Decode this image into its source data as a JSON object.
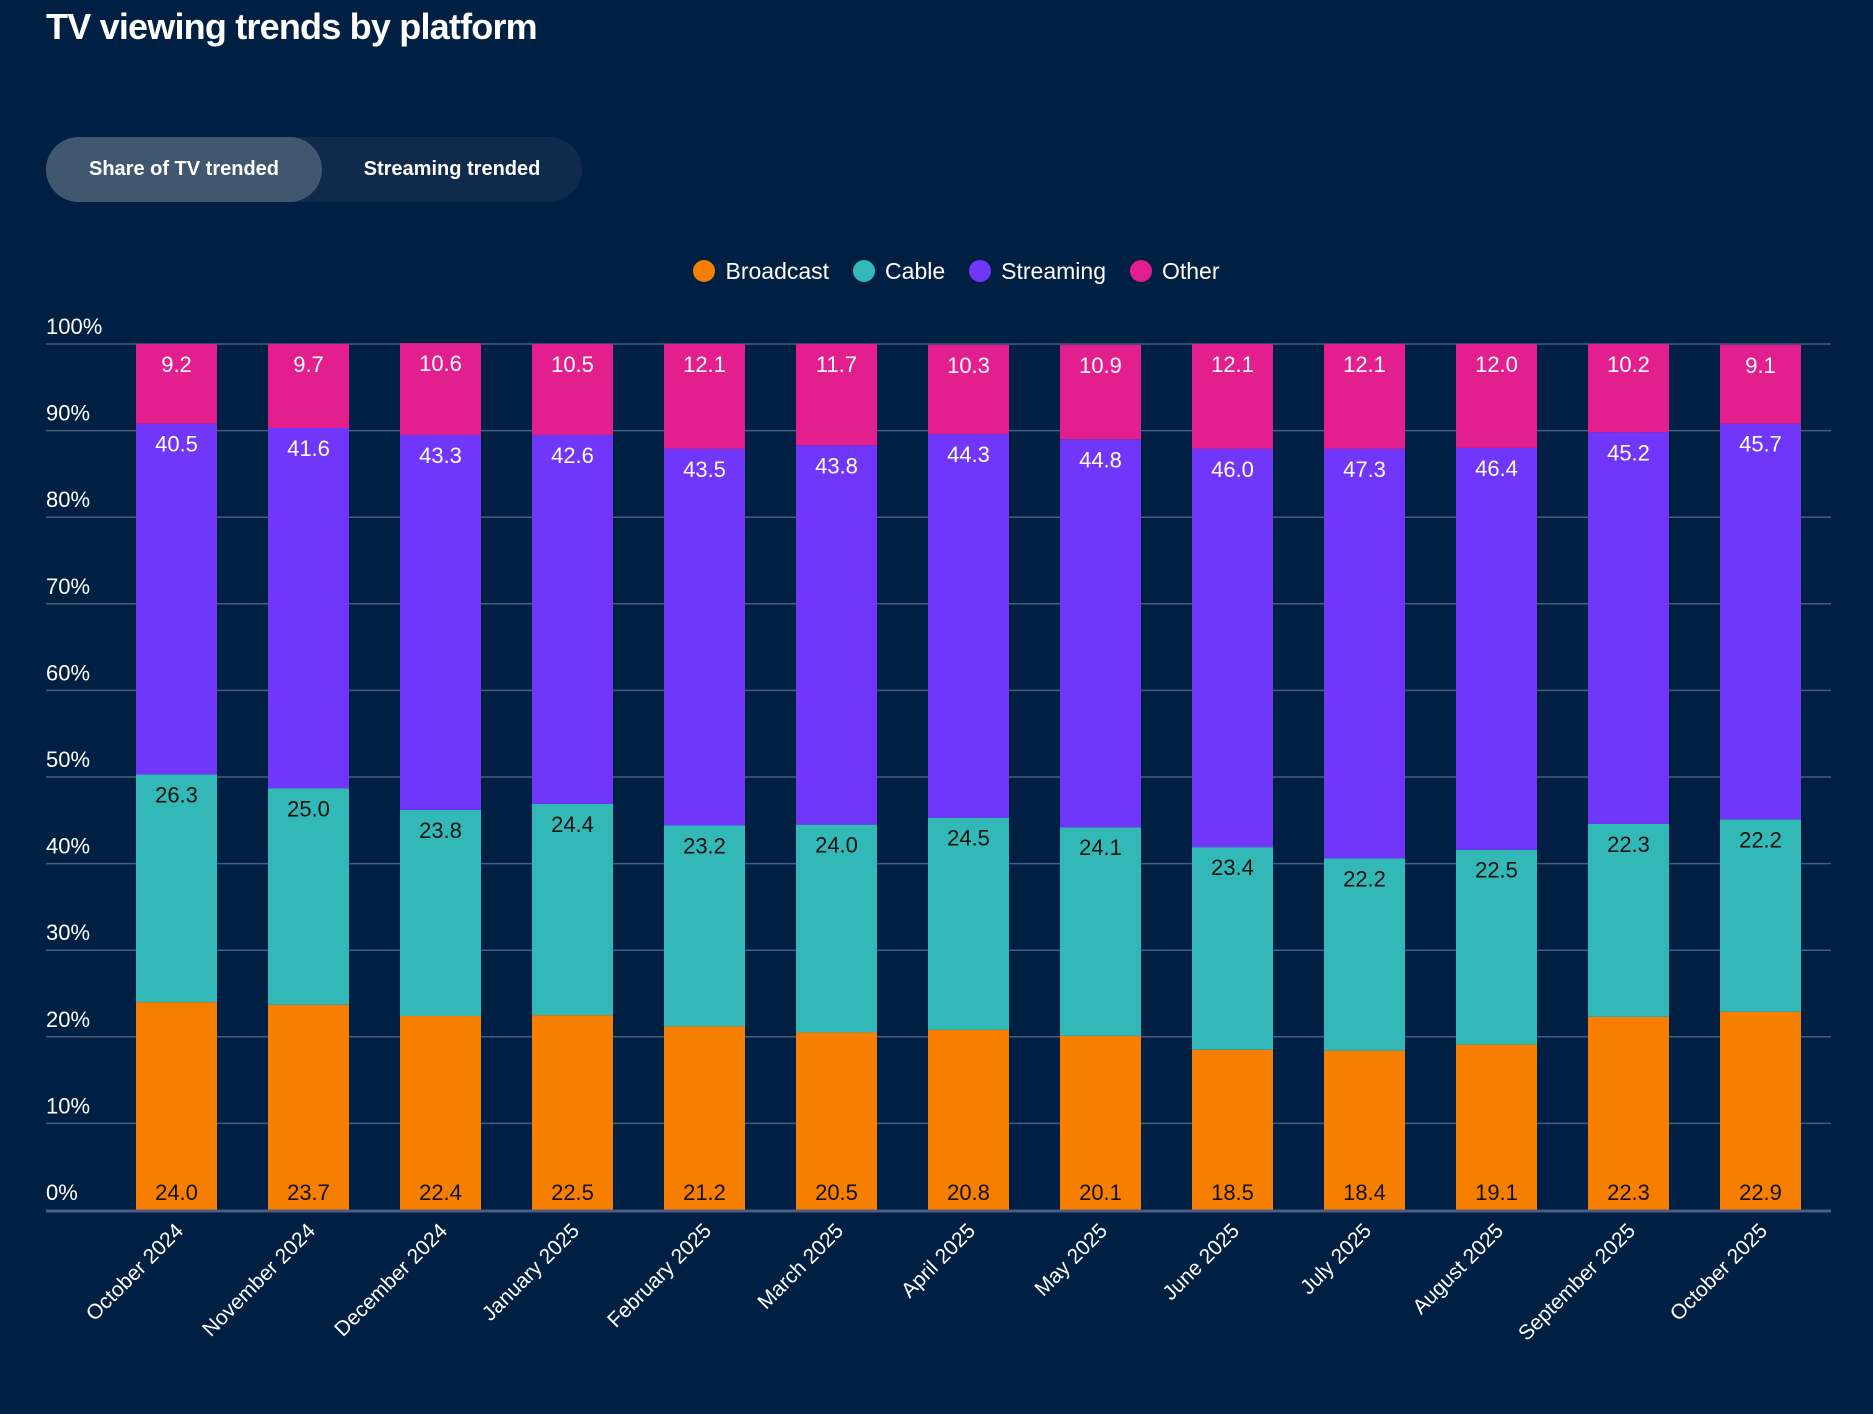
{
  "page": {
    "title": "TV viewing trends by platform"
  },
  "toggle": {
    "options": [
      {
        "label": "Share of TV trended",
        "active": true
      },
      {
        "label": "Streaming trended",
        "active": false
      }
    ]
  },
  "colors": {
    "background": "#002043",
    "Broadcast": "#f77f00",
    "Cable": "#33b8b8",
    "Streaming": "#7036f9",
    "Other": "#e21f8d",
    "gridline": "#4a5a7a",
    "axis": "#4e5d84"
  },
  "chart_data": {
    "type": "bar",
    "stacked": true,
    "title": "TV viewing trends by platform",
    "xlabel": "",
    "ylabel": "",
    "ylim": [
      0,
      100
    ],
    "yticks": [
      "0%",
      "10%",
      "20%",
      "30%",
      "40%",
      "50%",
      "60%",
      "70%",
      "80%",
      "90%",
      "100%"
    ],
    "grid": true,
    "legend_position": "top-center",
    "categories": [
      "October 2024",
      "November 2024",
      "December 2024",
      "January 2025",
      "February 2025",
      "March 2025",
      "April 2025",
      "May 2025",
      "June 2025",
      "July 2025",
      "August 2025",
      "September 2025",
      "October 2025"
    ],
    "series": [
      {
        "name": "Broadcast",
        "values": [
          24.0,
          23.7,
          22.4,
          22.5,
          21.2,
          20.5,
          20.8,
          20.1,
          18.5,
          18.4,
          19.1,
          22.3,
          22.9
        ],
        "label_color": "#111111"
      },
      {
        "name": "Cable",
        "values": [
          26.3,
          25.0,
          23.8,
          24.4,
          23.2,
          24.0,
          24.5,
          24.1,
          23.4,
          22.2,
          22.5,
          22.3,
          22.2
        ],
        "label_color": "#111111"
      },
      {
        "name": "Streaming",
        "values": [
          40.5,
          41.6,
          43.3,
          42.6,
          43.5,
          43.8,
          44.3,
          44.8,
          46.0,
          47.3,
          46.4,
          45.2,
          45.7
        ],
        "label_color": "#ffffff"
      },
      {
        "name": "Other",
        "values": [
          9.2,
          9.7,
          10.6,
          10.5,
          12.1,
          11.7,
          10.3,
          10.9,
          12.1,
          12.1,
          12.0,
          10.2,
          9.1
        ],
        "label_color": "#ffffff"
      }
    ]
  }
}
